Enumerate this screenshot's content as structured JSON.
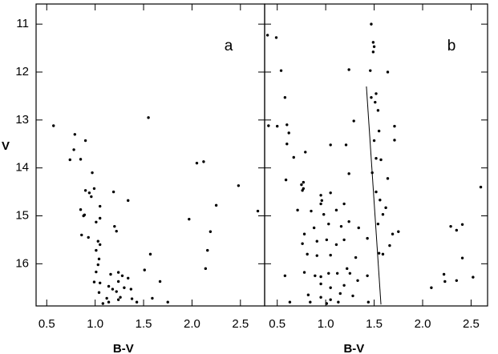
{
  "chart_data": [
    {
      "type": "scatter",
      "annotation": "a",
      "xlabel": "B-V",
      "ylabel": "V",
      "xlim": [
        0.39,
        2.75
      ],
      "ylim": [
        16.88,
        10.58
      ],
      "xticks": [
        0.5,
        {
          "value": 1.0,
          "label": "1.0"
        },
        1.5,
        {
          "value": 2.0,
          "label": "2.0"
        },
        2.5
      ],
      "yticks": [
        11,
        12,
        13,
        14,
        15,
        16
      ],
      "series": [
        {
          "color": "#000000",
          "x": [
            0.57,
            0.79,
            0.78,
            0.74,
            0.85,
            0.9,
            0.97,
            0.9,
            0.94,
            0.96,
            0.99,
            0.85,
            0.88,
            0.89,
            1.05,
            1.05,
            1.19,
            1.34,
            1.2,
            1.22,
            1.01,
            0.86,
            0.93,
            1.03,
            1.05,
            1.01,
            1.04,
            1.03,
            1.01,
            0.99,
            1.05,
            1.04,
            1.12,
            1.14,
            1.16,
            1.24,
            1.28,
            1.24,
            1.34,
            1.3,
            1.22,
            1.26,
            1.37,
            1.38,
            1.14,
            1.18,
            1.08,
            1.24,
            1.43,
            1.51,
            1.55,
            1.57,
            1.67,
            1.59,
            1.75,
            2.05,
            2.12,
            2.48,
            1.97,
            2.25,
            2.19,
            2.16,
            2.14,
            2.68
          ],
          "y": [
            13.12,
            13.3,
            13.62,
            13.83,
            13.82,
            13.43,
            14.1,
            14.47,
            14.52,
            14.6,
            14.43,
            14.87,
            15.0,
            14.98,
            14.8,
            15.05,
            14.5,
            14.68,
            15.22,
            15.32,
            15.13,
            15.4,
            15.45,
            15.53,
            15.6,
            15.72,
            15.9,
            16.02,
            16.17,
            16.38,
            16.4,
            16.6,
            16.72,
            16.8,
            16.22,
            16.18,
            16.25,
            16.37,
            16.3,
            16.5,
            16.58,
            16.7,
            16.53,
            16.73,
            16.47,
            16.53,
            16.83,
            16.75,
            16.8,
            16.13,
            12.95,
            15.8,
            16.37,
            16.72,
            16.8,
            13.9,
            13.87,
            14.37,
            15.07,
            14.78,
            15.33,
            15.72,
            16.1,
            14.9
          ]
        }
      ]
    },
    {
      "type": "scatter",
      "annotation": "b",
      "xlabel": "B-V",
      "xlim": [
        0.37,
        2.67
      ],
      "xticks": [
        0.5,
        {
          "value": 1.0,
          "label": "1.0"
        },
        1.5,
        {
          "value": 2.0,
          "label": "2.0"
        },
        2.5
      ],
      "line": {
        "x": [
          1.42,
          1.57
        ],
        "y": [
          12.3,
          16.85
        ]
      },
      "series": [
        {
          "color": "#000000",
          "x": [
            1.47,
            1.49,
            1.5,
            1.49,
            0.49,
            0.4,
            0.54,
            1.64,
            1.46,
            1.24,
            0.58,
            1.47,
            1.52,
            1.51,
            1.54,
            0.6,
            0.5,
            0.41,
            1.29,
            1.71,
            1.71,
            1.55,
            0.62,
            0.6,
            1.05,
            1.21,
            1.5,
            0.79,
            0.67,
            1.52,
            1.57,
            0.59,
            0.77,
            0.75,
            0.77,
            0.76,
            1.24,
            1.48,
            1.64,
            0.95,
            0.96,
            1.05,
            1.52,
            1.56,
            2.6,
            0.71,
            0.85,
            0.95,
            0.98,
            1.11,
            1.19,
            1.59,
            1.62,
            0.88,
            0.78,
            1.03,
            1.16,
            1.24,
            1.34,
            1.43,
            1.54,
            1.69,
            1.75,
            2.29,
            2.35,
            2.41,
            0.76,
            0.91,
            1.01,
            1.11,
            1.19,
            0.81,
            0.91,
            1.05,
            1.31,
            1.55,
            1.59,
            1.66,
            0.58,
            0.78,
            0.89,
            0.95,
            1.03,
            1.12,
            1.22,
            0.95,
            1.05,
            1.19,
            1.33,
            1.43,
            1.25,
            2.41,
            2.22,
            2.23,
            2.52,
            2.35,
            2.09,
            0.82,
            0.95,
            1.05,
            1.15,
            0.84,
            1.01,
            1.13,
            1.28,
            1.44,
            0.63
          ],
          "y": [
            11.0,
            11.38,
            11.47,
            11.58,
            11.28,
            11.23,
            11.97,
            12.0,
            11.97,
            11.95,
            12.53,
            12.53,
            12.45,
            12.63,
            12.8,
            13.1,
            13.13,
            13.12,
            13.02,
            13.13,
            13.42,
            13.23,
            13.27,
            13.5,
            13.52,
            13.52,
            13.43,
            13.67,
            13.78,
            13.8,
            13.83,
            14.25,
            14.3,
            14.35,
            14.43,
            14.47,
            14.12,
            14.1,
            14.22,
            14.57,
            14.68,
            14.52,
            14.5,
            14.67,
            14.4,
            14.88,
            14.9,
            14.75,
            14.97,
            14.88,
            14.75,
            14.97,
            14.83,
            15.25,
            15.38,
            15.17,
            15.22,
            15.12,
            15.25,
            15.47,
            15.17,
            15.38,
            15.33,
            15.22,
            15.3,
            15.18,
            15.58,
            15.53,
            15.5,
            15.6,
            15.5,
            15.8,
            15.83,
            15.82,
            15.87,
            15.78,
            15.8,
            15.62,
            16.25,
            16.18,
            16.25,
            16.27,
            16.2,
            16.2,
            16.1,
            16.42,
            16.5,
            16.45,
            16.35,
            16.25,
            16.2,
            15.88,
            16.22,
            16.37,
            16.28,
            16.35,
            16.5,
            16.65,
            16.7,
            16.75,
            16.62,
            16.8,
            16.83,
            16.8,
            16.67,
            16.8,
            16.8
          ]
        }
      ]
    }
  ]
}
